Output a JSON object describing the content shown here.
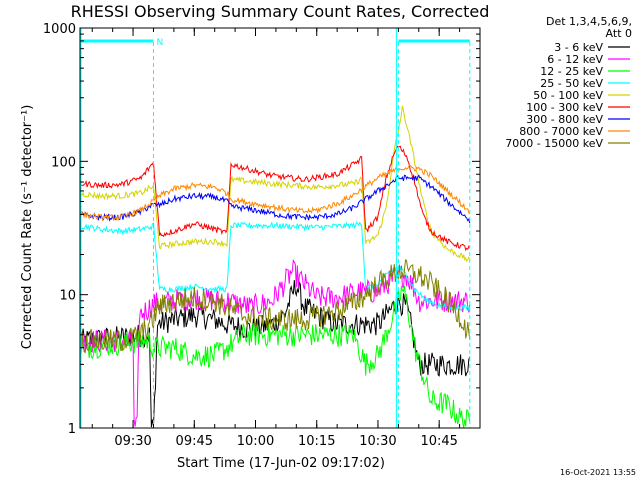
{
  "chart_data": {
    "type": "line",
    "title": "RHESSI Observing Summary Count Rates, Corrected",
    "xlabel": "Start Time (17-Jun-02 09:17:02)",
    "ylabel": "Corrected Count Rate (s⁻¹ detector⁻¹)",
    "yscale": "log",
    "ylim": [
      1,
      1000
    ],
    "xlim": [
      0,
      98
    ],
    "x_units": "minutes since 09:17:02",
    "y_ticks": [
      1,
      10,
      100,
      1000
    ],
    "y_tick_labels": [
      "1",
      "10",
      "100",
      "1000"
    ],
    "x_ticks": [
      13,
      28,
      43,
      58,
      73,
      88
    ],
    "x_tick_labels": [
      "09:30",
      "09:45",
      "10:00",
      "10:15",
      "10:30",
      "10:45"
    ],
    "legend_header": [
      "Det 1,3,4,5,6,9,",
      "Att 0"
    ],
    "footer": "16-Oct-2021 13:55",
    "annotation": "N",
    "vertical_markers": [
      18,
      78,
      95.5
    ],
    "attenuator_bars": [
      [
        0,
        18
      ],
      [
        78,
        95.5
      ]
    ],
    "night_windows": [
      [
        18,
        78
      ],
      [
        95.5,
        98
      ]
    ],
    "series": [
      {
        "name": "3 - 6 keV",
        "color": "#000000",
        "points": [
          [
            0,
            4.5
          ],
          [
            17,
            5
          ],
          [
            17.5,
            1
          ],
          [
            18,
            1
          ],
          [
            19,
            6
          ],
          [
            23,
            6.5
          ],
          [
            28,
            7
          ],
          [
            33,
            6.5
          ],
          [
            36,
            6
          ],
          [
            42,
            5.5
          ],
          [
            47,
            6
          ],
          [
            50,
            7
          ],
          [
            53,
            12
          ],
          [
            55,
            8
          ],
          [
            58,
            7
          ],
          [
            63,
            6
          ],
          [
            68,
            6
          ],
          [
            73,
            6
          ],
          [
            75,
            7
          ],
          [
            78,
            9
          ],
          [
            80,
            8
          ],
          [
            81,
            6
          ],
          [
            83,
            3
          ],
          [
            95.5,
            3
          ]
        ]
      },
      {
        "name": "6 - 12 keV",
        "color": "#ff00ff",
        "points": [
          [
            0,
            4.5
          ],
          [
            13,
            4.5
          ],
          [
            13.2,
            1
          ],
          [
            14,
            1
          ],
          [
            14.5,
            7
          ],
          [
            17,
            8
          ],
          [
            18,
            8.5
          ],
          [
            28,
            9.5
          ],
          [
            33,
            9
          ],
          [
            36,
            9
          ],
          [
            42,
            8
          ],
          [
            47,
            9
          ],
          [
            50,
            12
          ],
          [
            52,
            15
          ],
          [
            55,
            12
          ],
          [
            58,
            9.5
          ],
          [
            63,
            9.5
          ],
          [
            68,
            10.5
          ],
          [
            73,
            10.5
          ],
          [
            75,
            12
          ],
          [
            78,
            14
          ],
          [
            80,
            14
          ],
          [
            82,
            11
          ],
          [
            83,
            9
          ],
          [
            95.5,
            9
          ]
        ]
      },
      {
        "name": "12 - 25 keV",
        "color": "#00ff00",
        "points": [
          [
            0,
            4
          ],
          [
            17,
            4.5
          ],
          [
            18,
            4
          ],
          [
            23,
            4
          ],
          [
            28,
            3.5
          ],
          [
            33,
            3.5
          ],
          [
            36,
            4
          ],
          [
            40,
            5
          ],
          [
            47,
            5
          ],
          [
            58,
            5
          ],
          [
            67,
            5
          ],
          [
            70,
            3
          ],
          [
            73,
            3.5
          ],
          [
            75,
            5
          ],
          [
            78,
            9
          ],
          [
            79,
            11
          ],
          [
            80,
            9
          ],
          [
            81,
            6
          ],
          [
            82,
            4
          ],
          [
            85,
            2
          ],
          [
            86,
            1.6
          ],
          [
            90,
            1.5
          ],
          [
            93,
            1.2
          ],
          [
            95.5,
            1.1
          ]
        ]
      },
      {
        "name": "25 - 50 keV",
        "color": "#00ffff",
        "points": [
          [
            0,
            33
          ],
          [
            5,
            31
          ],
          [
            10,
            30
          ],
          [
            15,
            31
          ],
          [
            17,
            32
          ],
          [
            18,
            33
          ],
          [
            19.5,
            11
          ],
          [
            23,
            11
          ],
          [
            28,
            11.5
          ],
          [
            33,
            11
          ],
          [
            36,
            11
          ],
          [
            37,
            33
          ],
          [
            47,
            33
          ],
          [
            58,
            32
          ],
          [
            67,
            33
          ],
          [
            69,
            34
          ],
          [
            70,
            11
          ],
          [
            73,
            12
          ],
          [
            75,
            14
          ],
          [
            78,
            16
          ],
          [
            80,
            14
          ],
          [
            82,
            11
          ],
          [
            85,
            9
          ],
          [
            90,
            8
          ],
          [
            95.5,
            8
          ]
        ]
      },
      {
        "name": "50 - 100 keV",
        "color": "#d4d400",
        "points": [
          [
            0,
            57
          ],
          [
            5,
            55
          ],
          [
            10,
            55
          ],
          [
            15,
            58
          ],
          [
            17,
            63
          ],
          [
            18,
            64
          ],
          [
            19.5,
            23
          ],
          [
            23,
            24
          ],
          [
            28,
            25
          ],
          [
            33,
            25
          ],
          [
            36,
            24
          ],
          [
            37,
            73
          ],
          [
            47,
            68
          ],
          [
            58,
            64
          ],
          [
            67,
            68
          ],
          [
            69,
            74
          ],
          [
            70,
            24
          ],
          [
            73,
            28
          ],
          [
            75,
            45
          ],
          [
            77,
            120
          ],
          [
            78,
            170
          ],
          [
            79,
            250
          ],
          [
            80,
            190
          ],
          [
            82,
            100
          ],
          [
            84,
            50
          ],
          [
            86,
            30
          ],
          [
            90,
            22
          ],
          [
            95.5,
            18
          ]
        ]
      },
      {
        "name": "100 - 300 keV",
        "color": "#ff0000",
        "points": [
          [
            0,
            68
          ],
          [
            5,
            66
          ],
          [
            10,
            67
          ],
          [
            15,
            75
          ],
          [
            17,
            90
          ],
          [
            18,
            98
          ],
          [
            19.5,
            28
          ],
          [
            23,
            30
          ],
          [
            28,
            34
          ],
          [
            33,
            31
          ],
          [
            36,
            29
          ],
          [
            37,
            95
          ],
          [
            47,
            78
          ],
          [
            55,
            73
          ],
          [
            63,
            80
          ],
          [
            67,
            95
          ],
          [
            69,
            105
          ],
          [
            70,
            30
          ],
          [
            73,
            38
          ],
          [
            75,
            75
          ],
          [
            77,
            115
          ],
          [
            78,
            130
          ],
          [
            80,
            110
          ],
          [
            82,
            70
          ],
          [
            84,
            40
          ],
          [
            86,
            30
          ],
          [
            90,
            25
          ],
          [
            95.5,
            22
          ]
        ]
      },
      {
        "name": "300 - 800 keV",
        "color": "#0000ff",
        "points": [
          [
            0,
            40
          ],
          [
            5,
            38
          ],
          [
            10,
            38
          ],
          [
            15,
            42
          ],
          [
            17,
            46
          ],
          [
            18,
            47
          ],
          [
            19.5,
            47
          ],
          [
            23,
            52
          ],
          [
            28,
            55
          ],
          [
            33,
            54
          ],
          [
            36,
            50
          ],
          [
            37,
            46
          ],
          [
            43,
            43
          ],
          [
            50,
            39
          ],
          [
            55,
            38
          ],
          [
            58,
            38
          ],
          [
            63,
            40
          ],
          [
            67,
            45
          ],
          [
            73,
            60
          ],
          [
            78,
            75
          ],
          [
            80,
            75
          ],
          [
            83,
            75
          ],
          [
            86,
            65
          ],
          [
            90,
            50
          ],
          [
            95.5,
            36
          ]
        ]
      },
      {
        "name": "800 - 7000 keV",
        "color": "#ff8800",
        "points": [
          [
            0,
            40
          ],
          [
            5,
            38
          ],
          [
            10,
            38
          ],
          [
            15,
            43
          ],
          [
            17,
            48
          ],
          [
            18,
            50
          ],
          [
            19.5,
            55
          ],
          [
            23,
            62
          ],
          [
            28,
            66
          ],
          [
            33,
            64
          ],
          [
            36,
            58
          ],
          [
            37,
            52
          ],
          [
            43,
            48
          ],
          [
            50,
            44
          ],
          [
            55,
            42
          ],
          [
            58,
            43
          ],
          [
            63,
            48
          ],
          [
            67,
            56
          ],
          [
            73,
            75
          ],
          [
            78,
            88
          ],
          [
            80,
            90
          ],
          [
            83,
            88
          ],
          [
            86,
            78
          ],
          [
            90,
            60
          ],
          [
            95.5,
            42
          ]
        ]
      },
      {
        "name": "7000 - 15000 keV",
        "color": "#808000",
        "points": [
          [
            0,
            4.5
          ],
          [
            10,
            4.5
          ],
          [
            15,
            5
          ],
          [
            17,
            6
          ],
          [
            18,
            6.5
          ],
          [
            19,
            8
          ],
          [
            23,
            9
          ],
          [
            28,
            9.5
          ],
          [
            33,
            9
          ],
          [
            36,
            8
          ],
          [
            40,
            7
          ],
          [
            47,
            6.5
          ],
          [
            55,
            6.5
          ],
          [
            63,
            7.5
          ],
          [
            68,
            9
          ],
          [
            73,
            12
          ],
          [
            78,
            15
          ],
          [
            80,
            15
          ],
          [
            83,
            14
          ],
          [
            86,
            12
          ],
          [
            90,
            9
          ],
          [
            93,
            7
          ],
          [
            95.5,
            5
          ]
        ]
      }
    ]
  }
}
